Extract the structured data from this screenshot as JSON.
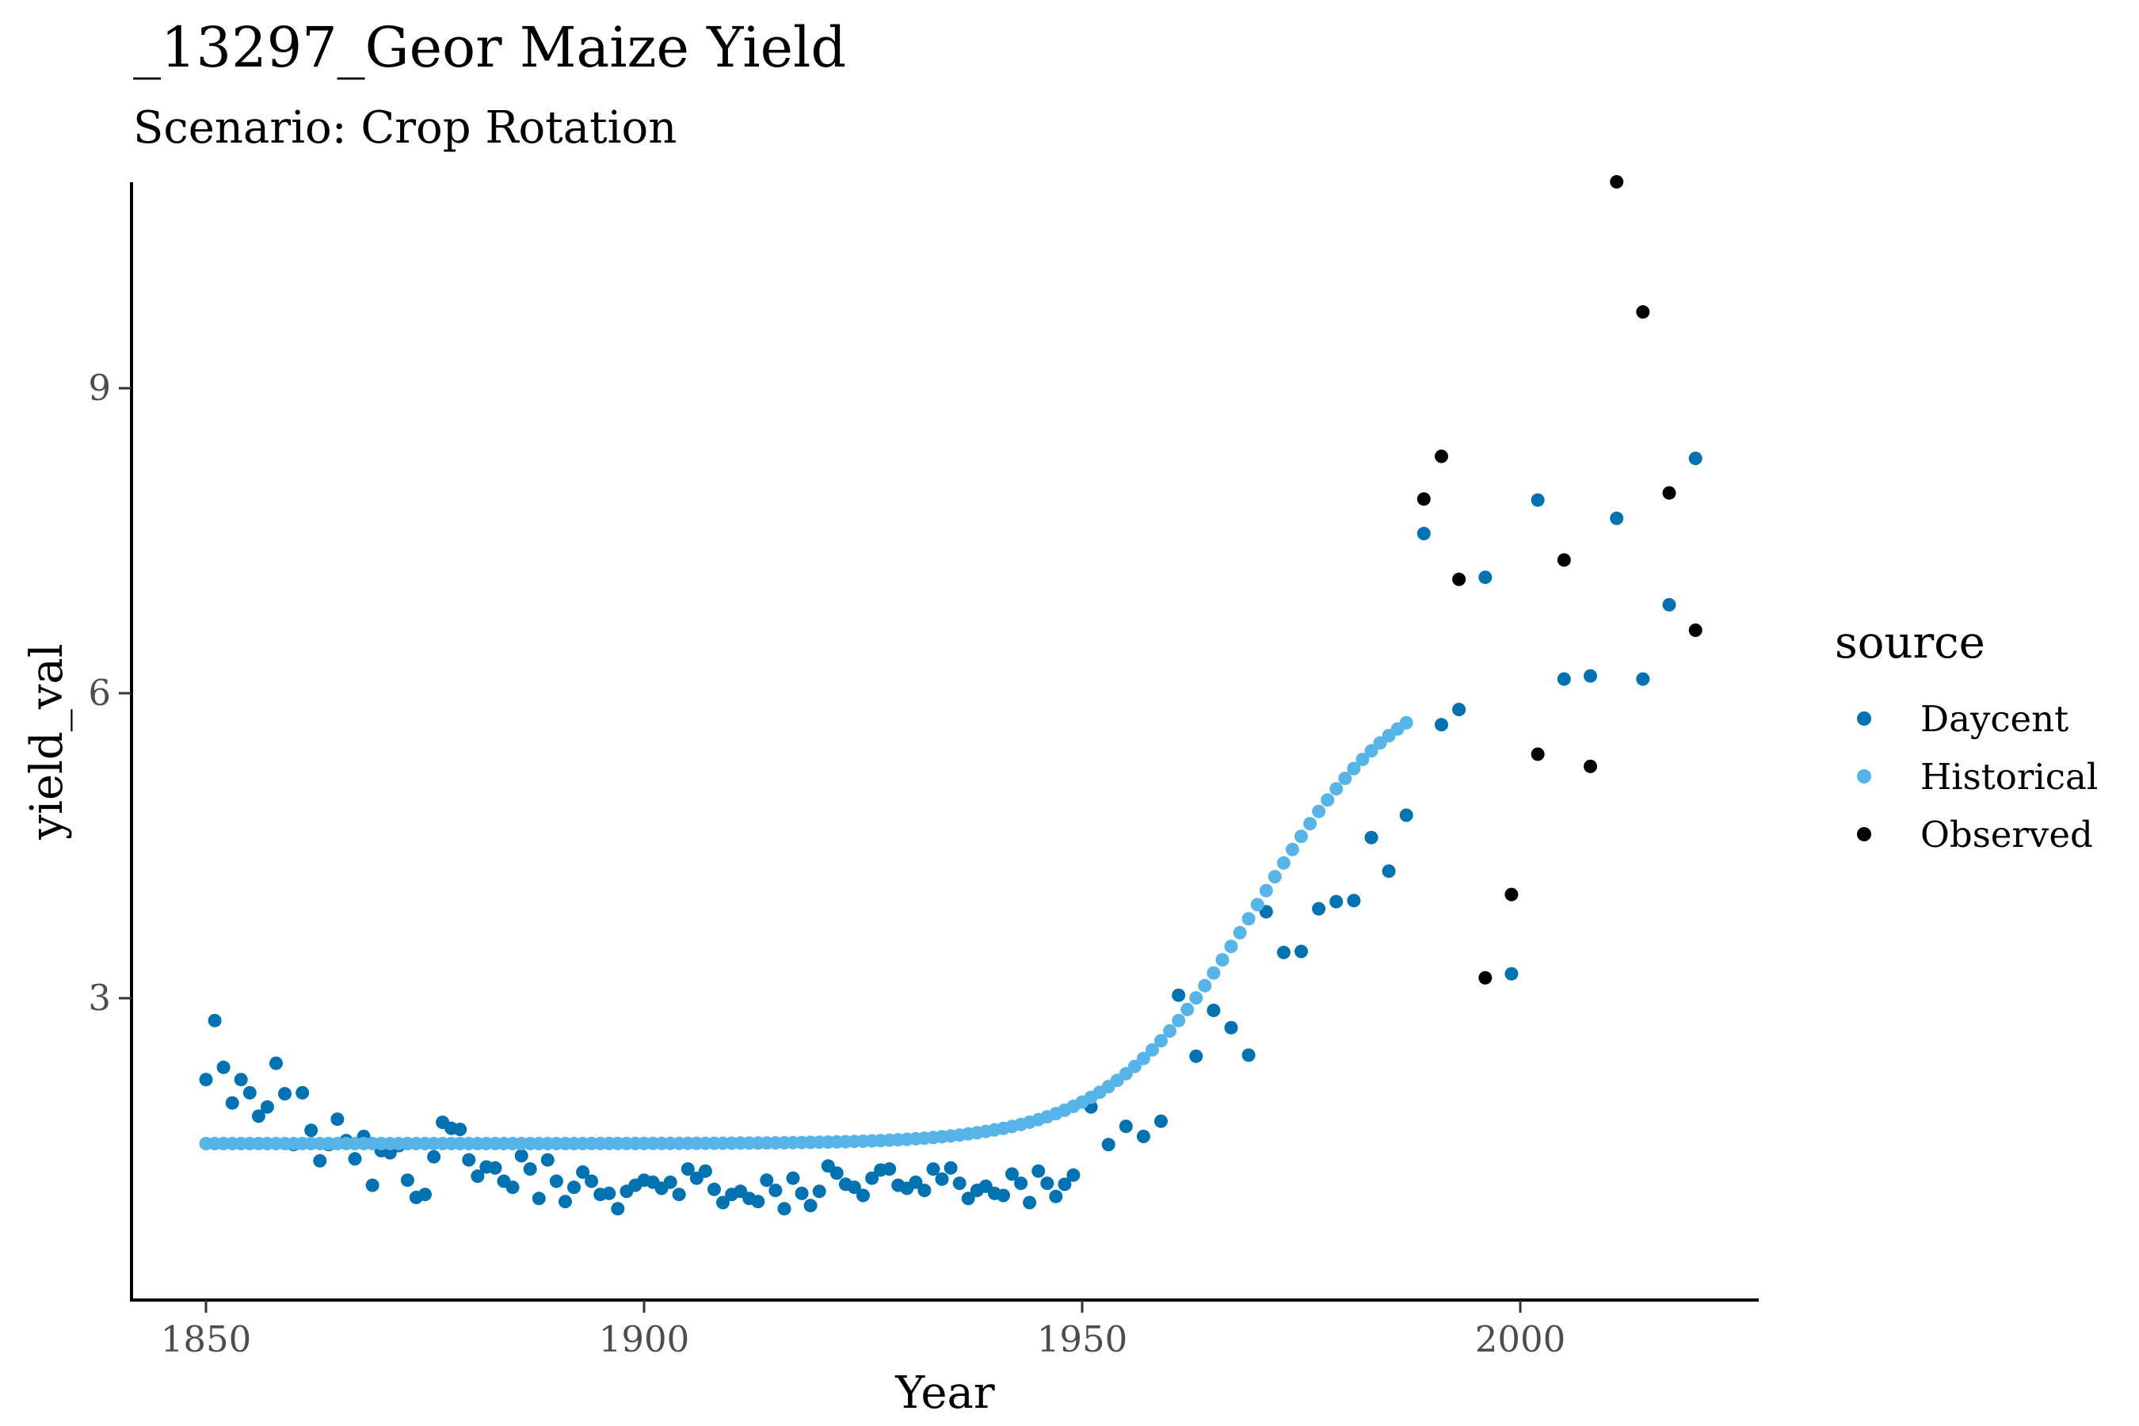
{
  "chart_data": {
    "type": "scatter",
    "title": "_13297_Geor Maize Yield",
    "subtitle": "Scenario: Crop Rotation",
    "xlabel": "Year",
    "ylabel": "yield_val",
    "xlim": [
      1842,
      2028
    ],
    "ylim": [
      0.2,
      11.4
    ],
    "x_ticks": [
      1850,
      1900,
      1950,
      2000
    ],
    "y_ticks": [
      3,
      6,
      9
    ],
    "grid": false,
    "legend": {
      "title": "source",
      "position": "right"
    },
    "series": [
      {
        "name": "Daycent",
        "color": "#0072B2",
        "points": [
          [
            1850,
            2.2
          ],
          [
            1851,
            2.78
          ],
          [
            1852,
            2.32
          ],
          [
            1853,
            1.97
          ],
          [
            1854,
            2.2
          ],
          [
            1855,
            2.07
          ],
          [
            1856,
            1.84
          ],
          [
            1857,
            1.93
          ],
          [
            1858,
            2.36
          ],
          [
            1859,
            2.06
          ],
          [
            1860,
            1.56
          ],
          [
            1861,
            2.07
          ],
          [
            1862,
            1.7
          ],
          [
            1863,
            1.4
          ],
          [
            1864,
            1.56
          ],
          [
            1865,
            1.81
          ],
          [
            1866,
            1.6
          ],
          [
            1867,
            1.42
          ],
          [
            1868,
            1.64
          ],
          [
            1869,
            1.16
          ],
          [
            1870,
            1.5
          ],
          [
            1871,
            1.48
          ],
          [
            1872,
            1.55
          ],
          [
            1873,
            1.21
          ],
          [
            1874,
            1.04
          ],
          [
            1875,
            1.07
          ],
          [
            1876,
            1.44
          ],
          [
            1877,
            1.78
          ],
          [
            1878,
            1.72
          ],
          [
            1879,
            1.71
          ],
          [
            1880,
            1.41
          ],
          [
            1881,
            1.25
          ],
          [
            1882,
            1.34
          ],
          [
            1883,
            1.33
          ],
          [
            1884,
            1.2
          ],
          [
            1885,
            1.14
          ],
          [
            1886,
            1.45
          ],
          [
            1887,
            1.32
          ],
          [
            1888,
            1.03
          ],
          [
            1889,
            1.41
          ],
          [
            1890,
            1.2
          ],
          [
            1891,
            1.0
          ],
          [
            1892,
            1.14
          ],
          [
            1893,
            1.29
          ],
          [
            1894,
            1.2
          ],
          [
            1895,
            1.07
          ],
          [
            1896,
            1.08
          ],
          [
            1897,
            0.93
          ],
          [
            1898,
            1.1
          ],
          [
            1899,
            1.16
          ],
          [
            1900,
            1.21
          ],
          [
            1901,
            1.19
          ],
          [
            1902,
            1.13
          ],
          [
            1903,
            1.19
          ],
          [
            1904,
            1.07
          ],
          [
            1905,
            1.32
          ],
          [
            1906,
            1.23
          ],
          [
            1907,
            1.3
          ],
          [
            1908,
            1.12
          ],
          [
            1909,
            0.99
          ],
          [
            1910,
            1.07
          ],
          [
            1911,
            1.1
          ],
          [
            1912,
            1.03
          ],
          [
            1913,
            1.0
          ],
          [
            1914,
            1.21
          ],
          [
            1915,
            1.11
          ],
          [
            1916,
            0.93
          ],
          [
            1917,
            1.23
          ],
          [
            1918,
            1.08
          ],
          [
            1919,
            0.96
          ],
          [
            1920,
            1.1
          ],
          [
            1921,
            1.35
          ],
          [
            1922,
            1.28
          ],
          [
            1923,
            1.17
          ],
          [
            1924,
            1.14
          ],
          [
            1925,
            1.06
          ],
          [
            1926,
            1.23
          ],
          [
            1927,
            1.31
          ],
          [
            1928,
            1.32
          ],
          [
            1929,
            1.16
          ],
          [
            1930,
            1.13
          ],
          [
            1931,
            1.19
          ],
          [
            1932,
            1.11
          ],
          [
            1933,
            1.32
          ],
          [
            1934,
            1.22
          ],
          [
            1935,
            1.33
          ],
          [
            1936,
            1.18
          ],
          [
            1937,
            1.03
          ],
          [
            1938,
            1.11
          ],
          [
            1939,
            1.15
          ],
          [
            1940,
            1.08
          ],
          [
            1941,
            1.06
          ],
          [
            1942,
            1.27
          ],
          [
            1943,
            1.18
          ],
          [
            1944,
            0.99
          ],
          [
            1945,
            1.3
          ],
          [
            1946,
            1.18
          ],
          [
            1947,
            1.05
          ],
          [
            1948,
            1.17
          ],
          [
            1949,
            1.26
          ],
          [
            1951,
            1.93
          ],
          [
            1953,
            1.56
          ],
          [
            1955,
            1.74
          ],
          [
            1957,
            1.64
          ],
          [
            1959,
            1.79
          ],
          [
            1961,
            3.03
          ],
          [
            1963,
            2.43
          ],
          [
            1965,
            2.88
          ],
          [
            1967,
            2.71
          ],
          [
            1969,
            2.44
          ],
          [
            1971,
            3.85
          ],
          [
            1973,
            3.45
          ],
          [
            1975,
            3.46
          ],
          [
            1977,
            3.88
          ],
          [
            1979,
            3.95
          ],
          [
            1981,
            3.96
          ],
          [
            1983,
            4.58
          ],
          [
            1985,
            4.25
          ],
          [
            1987,
            4.8
          ],
          [
            1989,
            7.57
          ],
          [
            1991,
            5.69
          ],
          [
            1993,
            5.84
          ],
          [
            1996,
            7.14
          ],
          [
            1999,
            3.24
          ],
          [
            2002,
            7.9
          ],
          [
            2005,
            6.14
          ],
          [
            2008,
            6.17
          ],
          [
            2011,
            7.72
          ],
          [
            2014,
            6.14
          ],
          [
            2017,
            6.87
          ],
          [
            2020,
            8.31
          ]
        ]
      },
      {
        "name": "Historical",
        "color": "#56B4E9",
        "logistic": {
          "x_start": 1850,
          "x_end": 1987,
          "base": 1.57,
          "amplitude": 4.7,
          "midpoint": 1970,
          "scale": 8.5
        }
      },
      {
        "name": "Observed",
        "color": "#000000",
        "points": [
          [
            1989,
            7.91
          ],
          [
            1991,
            8.33
          ],
          [
            1993,
            7.12
          ],
          [
            1996,
            3.2
          ],
          [
            1999,
            4.02
          ],
          [
            2002,
            5.4
          ],
          [
            2005,
            7.31
          ],
          [
            2008,
            5.28
          ],
          [
            2011,
            11.03
          ],
          [
            2014,
            9.75
          ],
          [
            2017,
            7.97
          ],
          [
            2020,
            6.62
          ]
        ]
      }
    ]
  }
}
